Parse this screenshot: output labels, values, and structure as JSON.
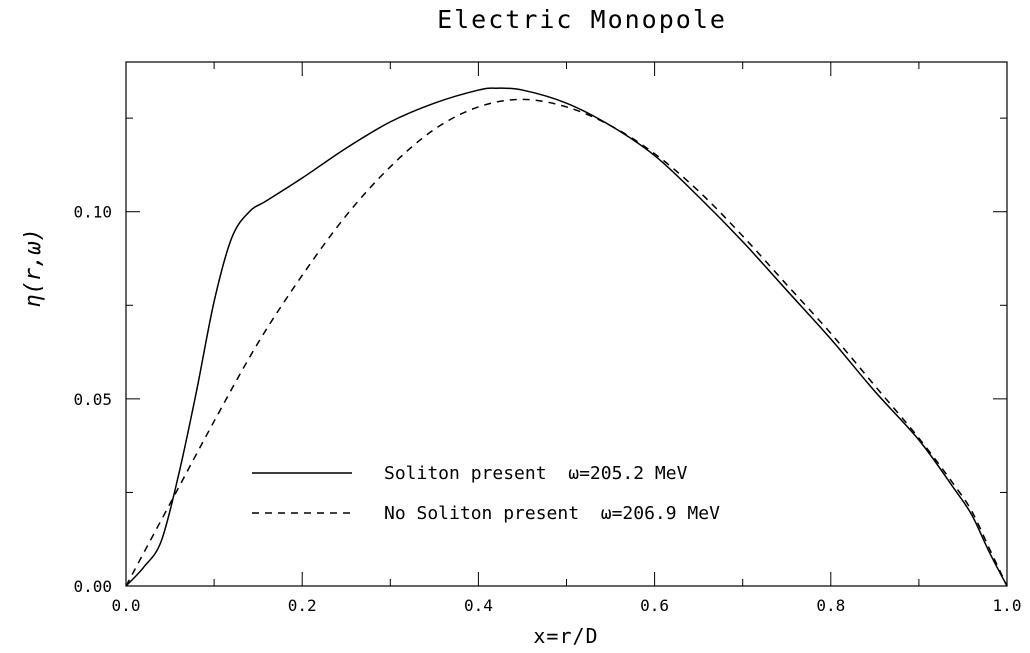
{
  "chart_data": {
    "type": "line",
    "title": "Electric Monopole",
    "xlabel": "x=r/D",
    "ylabel": "η(r,ω)",
    "xlim": [
      0.0,
      1.0
    ],
    "ylim": [
      0.0,
      0.14
    ],
    "x_ticks": [
      "0.0",
      "0.2",
      "0.4",
      "0.6",
      "0.8",
      "1.0"
    ],
    "y_ticks": [
      "0.00",
      "0.05",
      "0.10"
    ],
    "grid": false,
    "legend_position": "bottom-left",
    "series": [
      {
        "name": "Soliton present  ω=205.2 MeV",
        "style": "solid",
        "color": "#000000",
        "x": [
          0.0,
          0.02,
          0.04,
          0.06,
          0.08,
          0.1,
          0.12,
          0.14,
          0.16,
          0.2,
          0.25,
          0.3,
          0.35,
          0.4,
          0.42,
          0.45,
          0.5,
          0.55,
          0.6,
          0.65,
          0.7,
          0.75,
          0.8,
          0.85,
          0.9,
          0.94,
          0.96,
          0.98,
          1.0
        ],
        "y": [
          0.0,
          0.005,
          0.012,
          0.03,
          0.052,
          0.076,
          0.093,
          0.1,
          0.103,
          0.109,
          0.117,
          0.124,
          0.129,
          0.1325,
          0.133,
          0.1325,
          0.129,
          0.123,
          0.115,
          0.104,
          0.092,
          0.079,
          0.066,
          0.052,
          0.039,
          0.026,
          0.019,
          0.009,
          0.0
        ]
      },
      {
        "name": "No Soliton present  ω=206.9 MeV",
        "style": "dashed",
        "color": "#000000",
        "x": [
          0.0,
          0.05,
          0.1,
          0.15,
          0.2,
          0.25,
          0.3,
          0.35,
          0.4,
          0.45,
          0.5,
          0.55,
          0.6,
          0.65,
          0.7,
          0.75,
          0.8,
          0.85,
          0.9,
          0.94,
          0.96,
          0.98,
          1.0
        ],
        "y": [
          0.0,
          0.022,
          0.044,
          0.065,
          0.083,
          0.099,
          0.112,
          0.122,
          0.128,
          0.13,
          0.128,
          0.123,
          0.1155,
          0.1055,
          0.0935,
          0.0805,
          0.0675,
          0.0535,
          0.0395,
          0.027,
          0.02,
          0.01,
          0.0
        ]
      }
    ]
  }
}
